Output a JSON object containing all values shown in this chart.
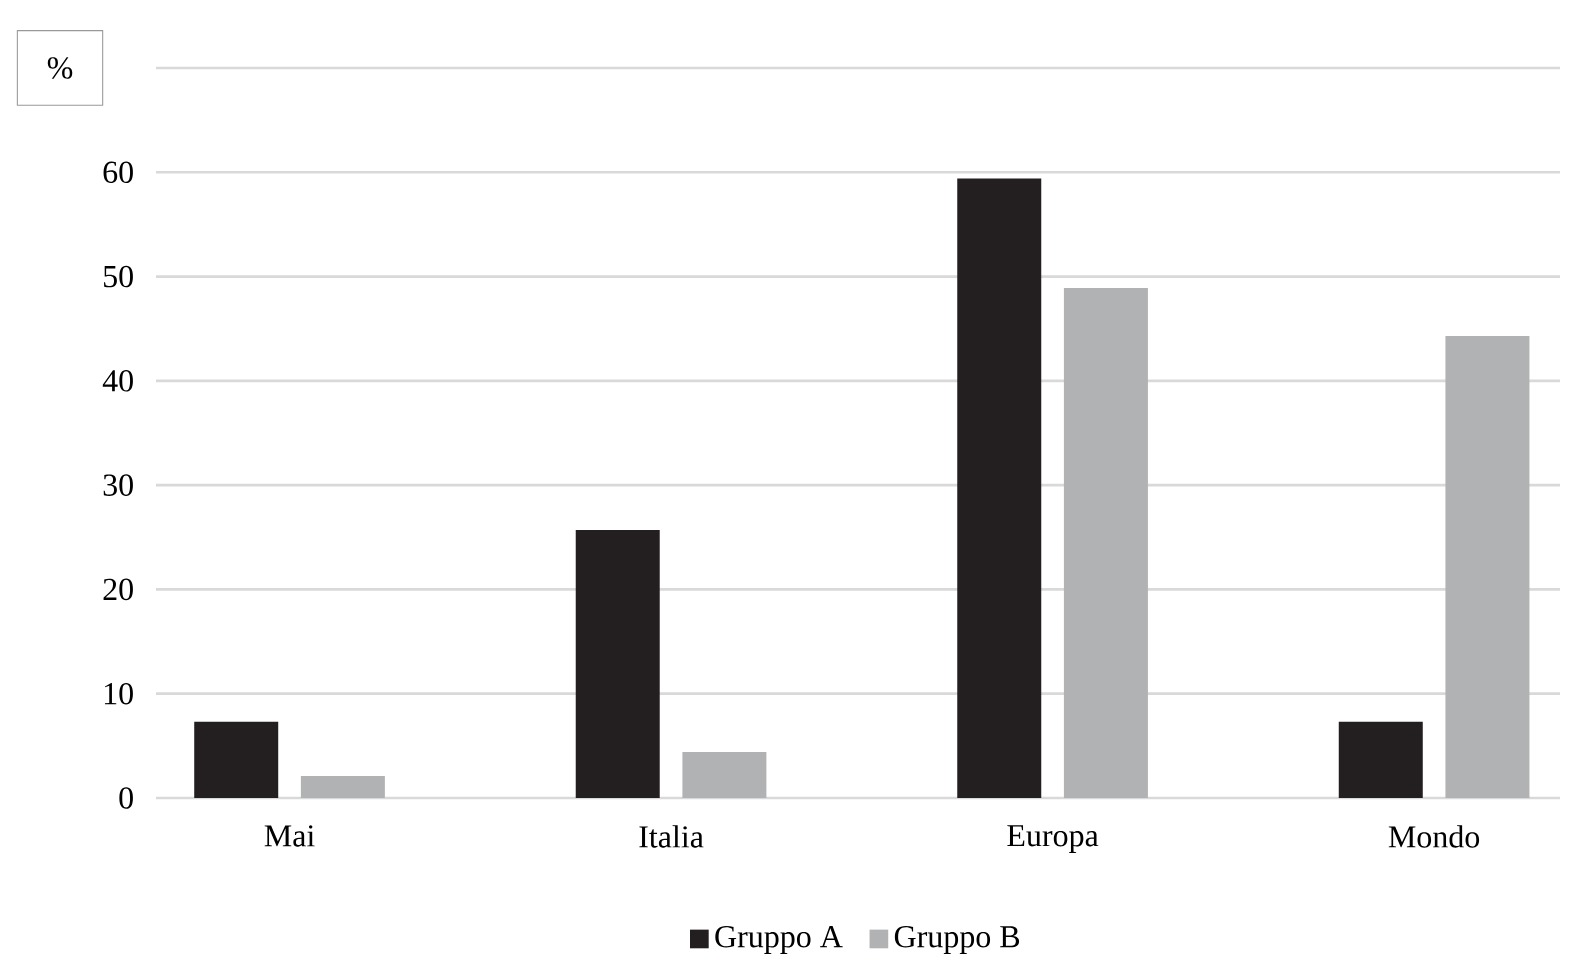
{
  "chart_data": {
    "type": "bar",
    "ylabel": "%",
    "categories": [
      "Mai",
      "Italia",
      "Europa",
      "Mondo"
    ],
    "series": [
      {
        "name": "Gruppo A",
        "color": "#231f20",
        "values": [
          7.3,
          25.7,
          59.4,
          7.3
        ]
      },
      {
        "name": "Gruppo B",
        "color": "#b1b2b4",
        "values": [
          2.1,
          4.4,
          48.9,
          44.3
        ]
      }
    ],
    "ylim": [
      0,
      70
    ],
    "yticks": [
      0,
      10,
      20,
      30,
      40,
      50,
      60,
      {
        "value": 70,
        "label": null
      }
    ],
    "grid": "y",
    "legend": "bottom"
  }
}
